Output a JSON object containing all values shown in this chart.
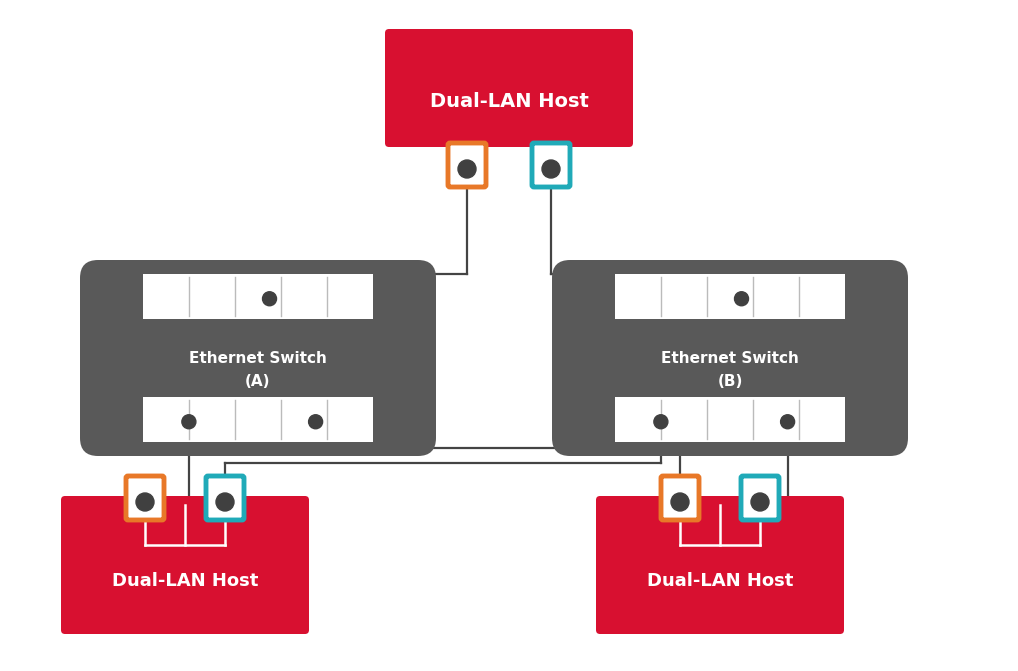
{
  "bg_color": "#ffffff",
  "host_color": "#d81030",
  "switch_color": "#595959",
  "port_border_orange": "#e87828",
  "port_border_cyan": "#20aab8",
  "line_color": "#444444",
  "text_color": "#ffffff",
  "host_label": "Dual-LAN Host",
  "switch_a_label": "Ethernet Switch\n(A)",
  "switch_b_label": "Ethernet Switch\n(B)",
  "figsize": [
    10.18,
    6.71
  ],
  "dpi": 100
}
